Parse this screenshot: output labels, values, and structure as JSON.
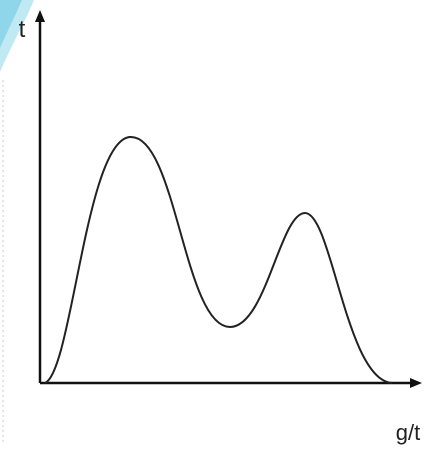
{
  "axes": {
    "y_label": "t",
    "x_label": "g/t"
  }
}
